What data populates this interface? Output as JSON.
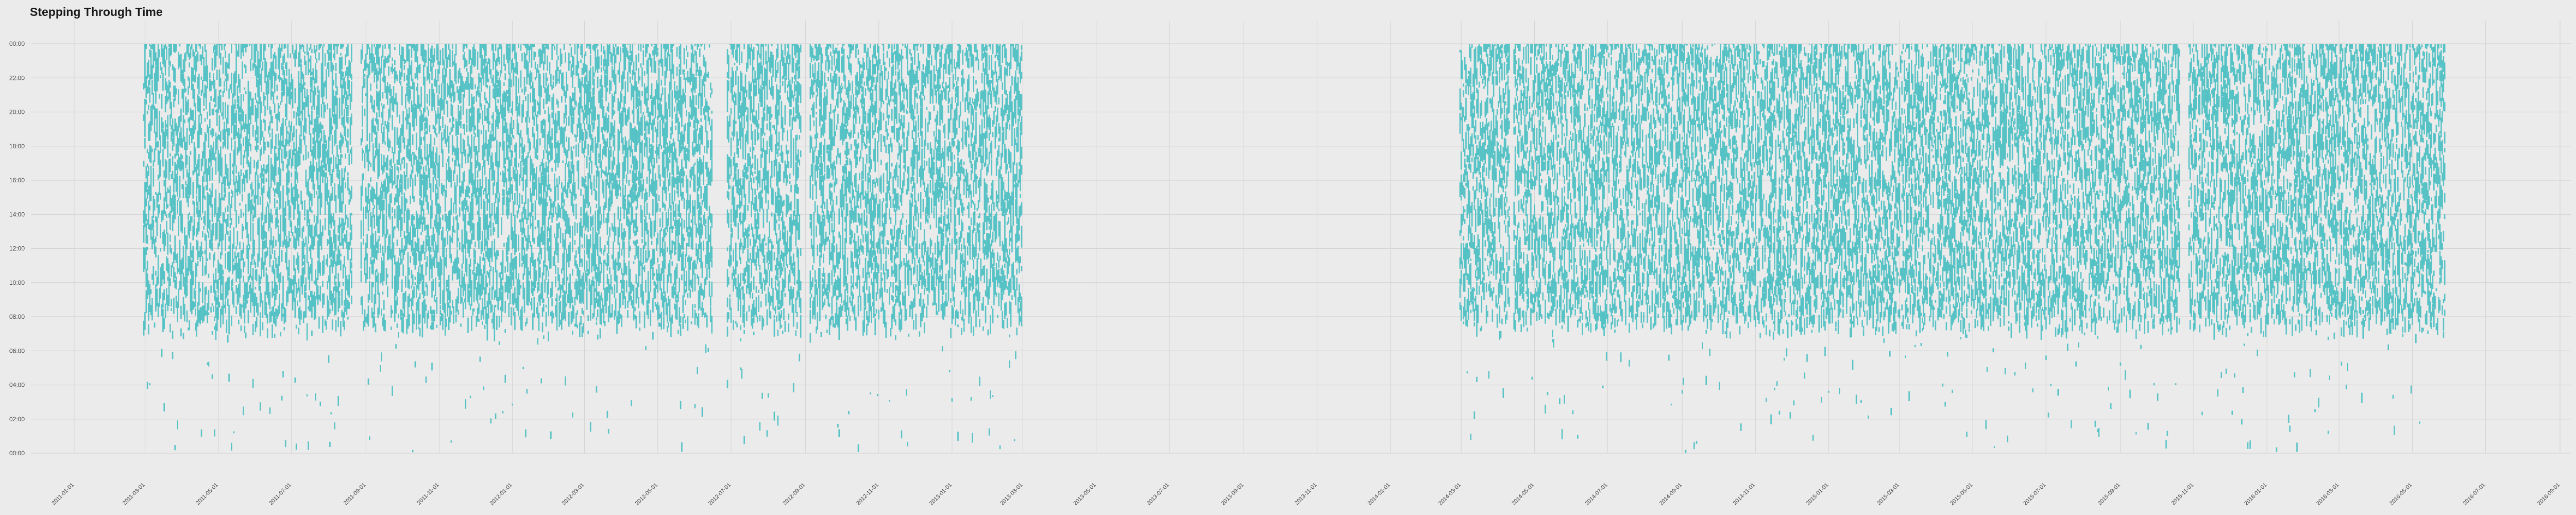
{
  "chart_data": {
    "type": "scatter",
    "title": "Stepping Through Time",
    "xlabel": "",
    "ylabel": "",
    "grid": true,
    "legend": "none",
    "point_color": "#3fbcc0",
    "background_color": "#ebebeb",
    "grid_color": "#d6d6d6",
    "x_range": [
      "2010-11-26",
      "2016-09-10"
    ],
    "y_range": [
      0,
      24
    ],
    "y_tick_labels": [
      "00:00",
      "02:00",
      "04:00",
      "06:00",
      "08:00",
      "10:00",
      "12:00",
      "14:00",
      "16:00",
      "18:00",
      "20:00",
      "22:00",
      "00:00"
    ],
    "y_tick_values": [
      0,
      2,
      4,
      6,
      8,
      10,
      12,
      14,
      16,
      18,
      20,
      22,
      24
    ],
    "x_tick_labels": [
      "2011-01-01",
      "2011-03-01",
      "2011-05-01",
      "2011-07-01",
      "2011-09-01",
      "2011-11-01",
      "2012-01-01",
      "2012-03-01",
      "2012-05-01",
      "2012-07-01",
      "2012-09-01",
      "2012-11-01",
      "2013-01-01",
      "2013-03-01",
      "2013-05-01",
      "2013-07-01",
      "2013-09-01",
      "2013-11-01",
      "2014-01-01",
      "2014-03-01",
      "2014-05-01",
      "2014-07-01",
      "2014-09-01",
      "2014-11-01",
      "2015-01-01",
      "2015-03-01",
      "2015-05-01",
      "2015-07-01",
      "2015-09-01",
      "2015-11-01",
      "2016-01-01",
      "2016-03-01",
      "2016-05-01",
      "2016-07-01",
      "2016-09-01"
    ],
    "active_periods": [
      {
        "start": "2011-02-28",
        "end": "2011-08-20"
      },
      {
        "start": "2011-08-28",
        "end": "2012-06-15"
      },
      {
        "start": "2012-06-28",
        "end": "2012-08-28"
      },
      {
        "start": "2012-09-05",
        "end": "2013-02-28"
      },
      {
        "start": "2014-02-28",
        "end": "2014-04-10"
      },
      {
        "start": "2014-04-14",
        "end": "2015-10-20"
      },
      {
        "start": "2015-10-28",
        "end": "2016-05-28"
      }
    ],
    "typical_hours": [
      8,
      24
    ],
    "sparse_hours": [
      0,
      8
    ]
  }
}
